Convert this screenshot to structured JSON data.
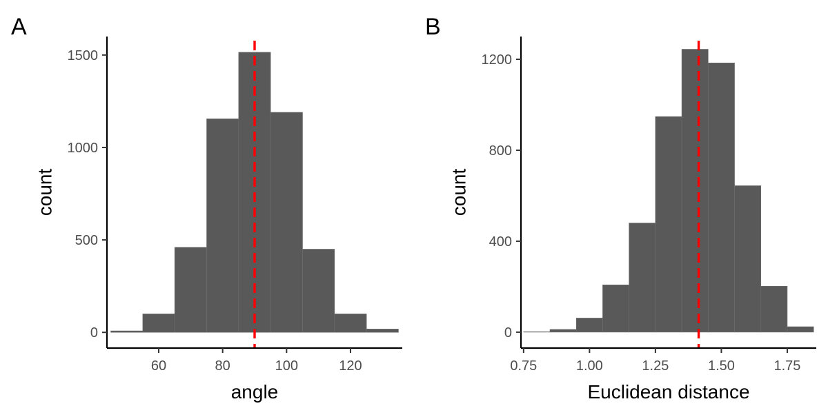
{
  "chart_data": [
    {
      "type": "bar",
      "panel_label": "A",
      "xlabel": "angle",
      "ylabel": "count",
      "bin_width": 10,
      "bins_center": [
        50,
        60,
        70,
        80,
        90,
        100,
        110,
        120,
        130
      ],
      "values": [
        8,
        100,
        460,
        1155,
        1515,
        1190,
        450,
        100,
        18
      ],
      "xlim": [
        43.8,
        136.2
      ],
      "ylim": [
        -85,
        1600
      ],
      "xticks": [
        60,
        80,
        100,
        120
      ],
      "xtick_labels": [
        "60",
        "80",
        "100",
        "120"
      ],
      "yticks": [
        0,
        500,
        1000,
        1500
      ],
      "ytick_labels": [
        "0",
        "500",
        "1000",
        "1500"
      ],
      "reference_line": {
        "x": 90,
        "color": "#ff0000",
        "style": "dashed"
      },
      "bar_color": "#595959",
      "grid": false,
      "legend": "none"
    },
    {
      "type": "bar",
      "panel_label": "B",
      "xlabel": "Euclidean distance",
      "ylabel": "count",
      "bin_width": 0.1,
      "bins_center": [
        0.8,
        0.9,
        1.0,
        1.1,
        1.2,
        1.3,
        1.4,
        1.5,
        1.6,
        1.7,
        1.8
      ],
      "values": [
        2,
        12,
        62,
        208,
        480,
        948,
        1244,
        1184,
        644,
        202,
        24
      ],
      "xlim": [
        0.74,
        1.86
      ],
      "ylim": [
        -70,
        1300
      ],
      "xticks": [
        0.75,
        1.0,
        1.25,
        1.5,
        1.75
      ],
      "xtick_labels": [
        "0.75",
        "1.00",
        "1.25",
        "1.50",
        "1.75"
      ],
      "yticks": [
        0,
        400,
        800,
        1200
      ],
      "ytick_labels": [
        "0",
        "400",
        "800",
        "1200"
      ],
      "reference_line": {
        "x": 1.414,
        "color": "#ff0000",
        "style": "dashed"
      },
      "bar_color": "#595959",
      "grid": false,
      "legend": "none"
    }
  ]
}
